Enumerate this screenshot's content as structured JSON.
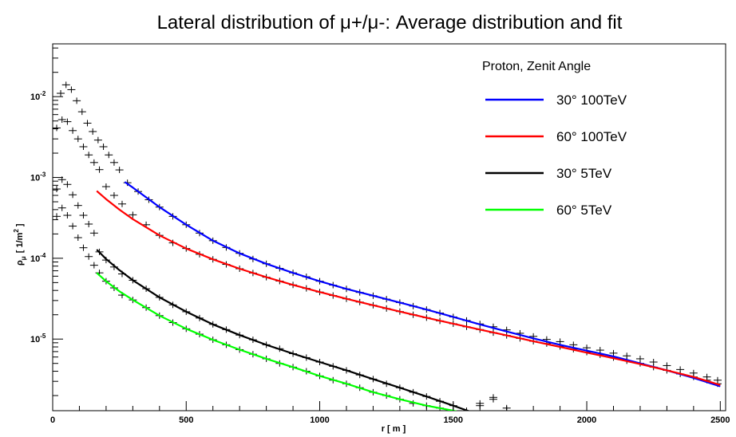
{
  "chart_data": {
    "type": "scatter",
    "title": "Lateral distribution of μ+/μ-: Average distribution and fit",
    "xlabel": "r [ m ]",
    "ylabel": "ρ_μ [ 1/m² ]",
    "ylabel_parts": {
      "rho": "ρ",
      "sub": "μ",
      "unit": "[ 1/m",
      "sup": "2",
      "close": " ]"
    },
    "xlim": [
      0,
      2520
    ],
    "ylim": [
      1.3e-06,
      0.045
    ],
    "yscale": "log",
    "x_ticks": [
      0,
      500,
      1000,
      1500,
      2000,
      2500
    ],
    "x_tick_labels": [
      "0",
      "500",
      "1000",
      "1500",
      "2000",
      "2500"
    ],
    "y_ticks": [
      1e-05,
      0.0001,
      0.001,
      0.01
    ],
    "y_tick_labels": [
      {
        "base": "10",
        "exp": "-5"
      },
      {
        "base": "10",
        "exp": "-4"
      },
      {
        "base": "10",
        "exp": "-3"
      },
      {
        "base": "10",
        "exp": "-2"
      }
    ],
    "legend": {
      "header": "Proton, Zenit Angle",
      "placement": "top-right"
    },
    "series": [
      {
        "name": "30° 100TeV",
        "color": "#0000ff",
        "fit_x": [
          270,
          300,
          400,
          500,
          600,
          700,
          800,
          900,
          1000,
          1100,
          1200,
          1300,
          1400,
          1500,
          1600,
          1700,
          1800,
          1900,
          2000,
          2100,
          2200,
          2300,
          2400,
          2500
        ],
        "fit_y": [
          0.00088,
          0.00075,
          0.00043,
          0.00026,
          0.000165,
          0.000115,
          8.55e-05,
          6.6e-05,
          5.2e-05,
          4.18e-05,
          3.44e-05,
          2.83e-05,
          2.32e-05,
          1.88e-05,
          1.52e-05,
          1.24e-05,
          1.02e-05,
          8.5e-06,
          7.2e-06,
          6.1e-06,
          5e-06,
          4.1e-06,
          3.3e-06,
          2.6e-06
        ],
        "points_x": [
          30,
          50,
          70,
          90,
          110,
          130,
          150,
          170,
          190,
          210,
          230,
          250,
          280,
          320,
          360,
          400,
          450,
          500,
          550,
          600,
          650,
          700,
          750,
          800,
          850,
          900,
          950,
          1000,
          1050,
          1100,
          1150,
          1200,
          1250,
          1300,
          1350,
          1400,
          1450,
          1500,
          1550,
          1600,
          1650,
          1700,
          1750,
          1800,
          1850,
          1900,
          1950,
          2000,
          2050,
          2100,
          2150,
          2200,
          2250,
          2300,
          2350,
          2400,
          2450,
          2490
        ],
        "points_y": [
          0.011,
          0.014,
          0.0122,
          0.0089,
          0.0065,
          0.0047,
          0.0037,
          0.0029,
          0.0024,
          0.0019,
          0.00153,
          0.00124,
          0.00086,
          0.00067,
          0.00053,
          0.00043,
          0.00033,
          0.00026,
          0.000205,
          0.000165,
          0.000136,
          0.000115,
          9.8e-05,
          8.55e-05,
          7.5e-05,
          6.6e-05,
          5.9e-05,
          5.2e-05,
          4.65e-05,
          4.18e-05,
          3.78e-05,
          3.44e-05,
          3.12e-05,
          2.83e-05,
          2.56e-05,
          2.32e-05,
          2.1e-05,
          1.88e-05,
          1.7e-05,
          1.54e-05,
          1.42e-05,
          1.3e-05,
          1.18e-05,
          1.08e-05,
          9.9e-06,
          9.3e-06,
          8.5e-06,
          7.8e-06,
          7.3e-06,
          6.7e-06,
          6.2e-06,
          5.7e-06,
          5.2e-06,
          4.7e-06,
          4.2e-06,
          3.8e-06,
          3.4e-06,
          3.1e-06
        ]
      },
      {
        "name": "60° 100TeV",
        "color": "#ff0000",
        "fit_x": [
          165,
          200,
          250,
          300,
          400,
          500,
          600,
          700,
          800,
          900,
          1000,
          1100,
          1200,
          1300,
          1400,
          1500,
          1600,
          1700,
          1800,
          1900,
          2000,
          2100,
          2200,
          2300,
          2400,
          2500
        ],
        "fit_y": [
          0.00068,
          0.00054,
          0.0004,
          0.000305,
          0.000192,
          0.000132,
          9.7e-05,
          7.42e-05,
          5.83e-05,
          4.68e-05,
          3.82e-05,
          3.15e-05,
          2.62e-05,
          2.19e-05,
          1.84e-05,
          1.55e-05,
          1.31e-05,
          1.11e-05,
          9.4e-06,
          8e-06,
          6.8e-06,
          5.8e-06,
          4.9e-06,
          4.1e-06,
          3.4e-06,
          2.7e-06
        ],
        "points_x": [
          15,
          35,
          55,
          75,
          95,
          115,
          135,
          155,
          175,
          200,
          230,
          260,
          300,
          350,
          400,
          450,
          500,
          550,
          600,
          650,
          700,
          750,
          800,
          850,
          900,
          950,
          1000,
          1050,
          1100,
          1150,
          1200,
          1250,
          1300,
          1350,
          1400,
          1450,
          1500,
          1550,
          1600,
          1650,
          1700,
          1750,
          1800,
          1850,
          1900,
          1950,
          2000,
          2050,
          2100,
          2150,
          2200,
          2250,
          2300,
          2350,
          2400,
          2450,
          2490
        ],
        "points_y": [
          0.0041,
          0.0052,
          0.0049,
          0.0038,
          0.003,
          0.0024,
          0.0019,
          0.00153,
          0.00125,
          0.00077,
          0.0006,
          0.00047,
          0.000345,
          0.00026,
          0.000192,
          0.000155,
          0.000132,
          0.000112,
          9.7e-05,
          8.4e-05,
          7.42e-05,
          6.57e-05,
          5.83e-05,
          5.22e-05,
          4.68e-05,
          4.24e-05,
          3.82e-05,
          3.46e-05,
          3.15e-05,
          2.87e-05,
          2.62e-05,
          2.39e-05,
          2.19e-05,
          2e-05,
          1.84e-05,
          1.68e-05,
          1.55e-05,
          1.42e-05,
          1.31e-05,
          1.2e-05,
          1.11e-05,
          1.02e-05,
          9.4e-06,
          8.8e-06,
          8.1e-06,
          7.5e-06,
          6.9e-06,
          6.4e-06,
          5.9e-06,
          5.4e-06,
          5e-06,
          4.5e-06,
          4.1e-06,
          3.7e-06,
          3.4e-06,
          3.1e-06,
          2.8e-06
        ]
      },
      {
        "name": "30° 5TeV",
        "color": "#000000",
        "fit_x": [
          165,
          200,
          250,
          300,
          400,
          500,
          600,
          700,
          800,
          900,
          1000,
          1100,
          1200,
          1300,
          1400,
          1500,
          1600,
          1700
        ],
        "fit_y": [
          0.000128,
          9.8e-05,
          7.13e-05,
          5.35e-05,
          3.28e-05,
          2.18e-05,
          1.52e-05,
          1.12e-05,
          8.5e-06,
          6.6e-06,
          5.2e-06,
          4.1e-06,
          3.2e-06,
          2.5e-06,
          1.95e-06,
          1.5e-06,
          1.15e-06,
          8.5e-07
        ],
        "points_x": [
          15,
          35,
          55,
          75,
          95,
          115,
          135,
          155,
          175,
          200,
          230,
          260,
          300,
          350,
          400,
          450,
          500,
          550,
          600,
          650,
          700,
          750,
          800,
          850,
          900,
          950,
          1000,
          1050,
          1100,
          1150,
          1200,
          1250,
          1300,
          1350,
          1400,
          1450,
          1500,
          1550,
          1600,
          1650,
          1700
        ],
        "points_y": [
          0.00072,
          0.00094,
          0.00082,
          0.00061,
          0.00045,
          0.00034,
          0.000265,
          0.000205,
          0.00012,
          9.5e-05,
          7.8e-05,
          6.4e-05,
          5.35e-05,
          4.2e-05,
          3.28e-05,
          2.65e-05,
          2.18e-05,
          1.82e-05,
          1.52e-05,
          1.31e-05,
          1.12e-05,
          9.8e-06,
          8.5e-06,
          7.6e-06,
          6.6e-06,
          5.9e-06,
          5.2e-06,
          4.6e-06,
          4.1e-06,
          3.6e-06,
          3.2e-06,
          2.8e-06,
          2.5e-06,
          2.2e-06,
          1.95e-06,
          1.7e-06,
          1.5e-06,
          1.3e-06,
          1.6e-06,
          1.9e-06,
          1.4e-06
        ]
      },
      {
        "name": "60° 5TeV",
        "color": "#00ff00",
        "fit_x": [
          165,
          200,
          250,
          300,
          400,
          500,
          600,
          700,
          800,
          900,
          1000,
          1100,
          1200,
          1300,
          1400,
          1500,
          1550
        ],
        "fit_y": [
          6.6e-05,
          5.2e-05,
          3.9e-05,
          3.05e-05,
          1.95e-05,
          1.34e-05,
          9.8e-06,
          7.4e-06,
          5.7e-06,
          4.5e-06,
          3.5e-06,
          2.8e-06,
          2.2e-06,
          1.8e-06,
          1.5e-06,
          1.3e-06,
          1.2e-06
        ],
        "points_x": [
          15,
          35,
          55,
          75,
          95,
          115,
          135,
          155,
          175,
          200,
          230,
          260,
          300,
          350,
          400,
          450,
          500,
          550,
          600,
          650,
          700,
          750,
          800,
          850,
          900,
          950,
          1000,
          1050,
          1100,
          1150,
          1200,
          1250,
          1300,
          1350,
          1400,
          1450,
          1500,
          1550,
          1600,
          1650,
          1700
        ],
        "points_y": [
          0.00033,
          0.00042,
          0.00034,
          0.00025,
          0.00018,
          0.000135,
          0.000105,
          8.2e-05,
          6.6e-05,
          5.2e-05,
          4.3e-05,
          3.5e-05,
          3.05e-05,
          2.45e-05,
          1.95e-05,
          1.6e-05,
          1.34e-05,
          1.15e-05,
          9.8e-06,
          8.5e-06,
          7.4e-06,
          6.5e-06,
          5.7e-06,
          5e-06,
          4.5e-06,
          4e-06,
          3.5e-06,
          3.1e-06,
          2.8e-06,
          2.5e-06,
          2.2e-06,
          2e-06,
          1.8e-06,
          1.6e-06,
          1.5e-06,
          1.4e-06,
          1.3e-06,
          1.2e-06,
          1.5e-06,
          1.8e-06,
          1.3e-06
        ]
      }
    ]
  }
}
